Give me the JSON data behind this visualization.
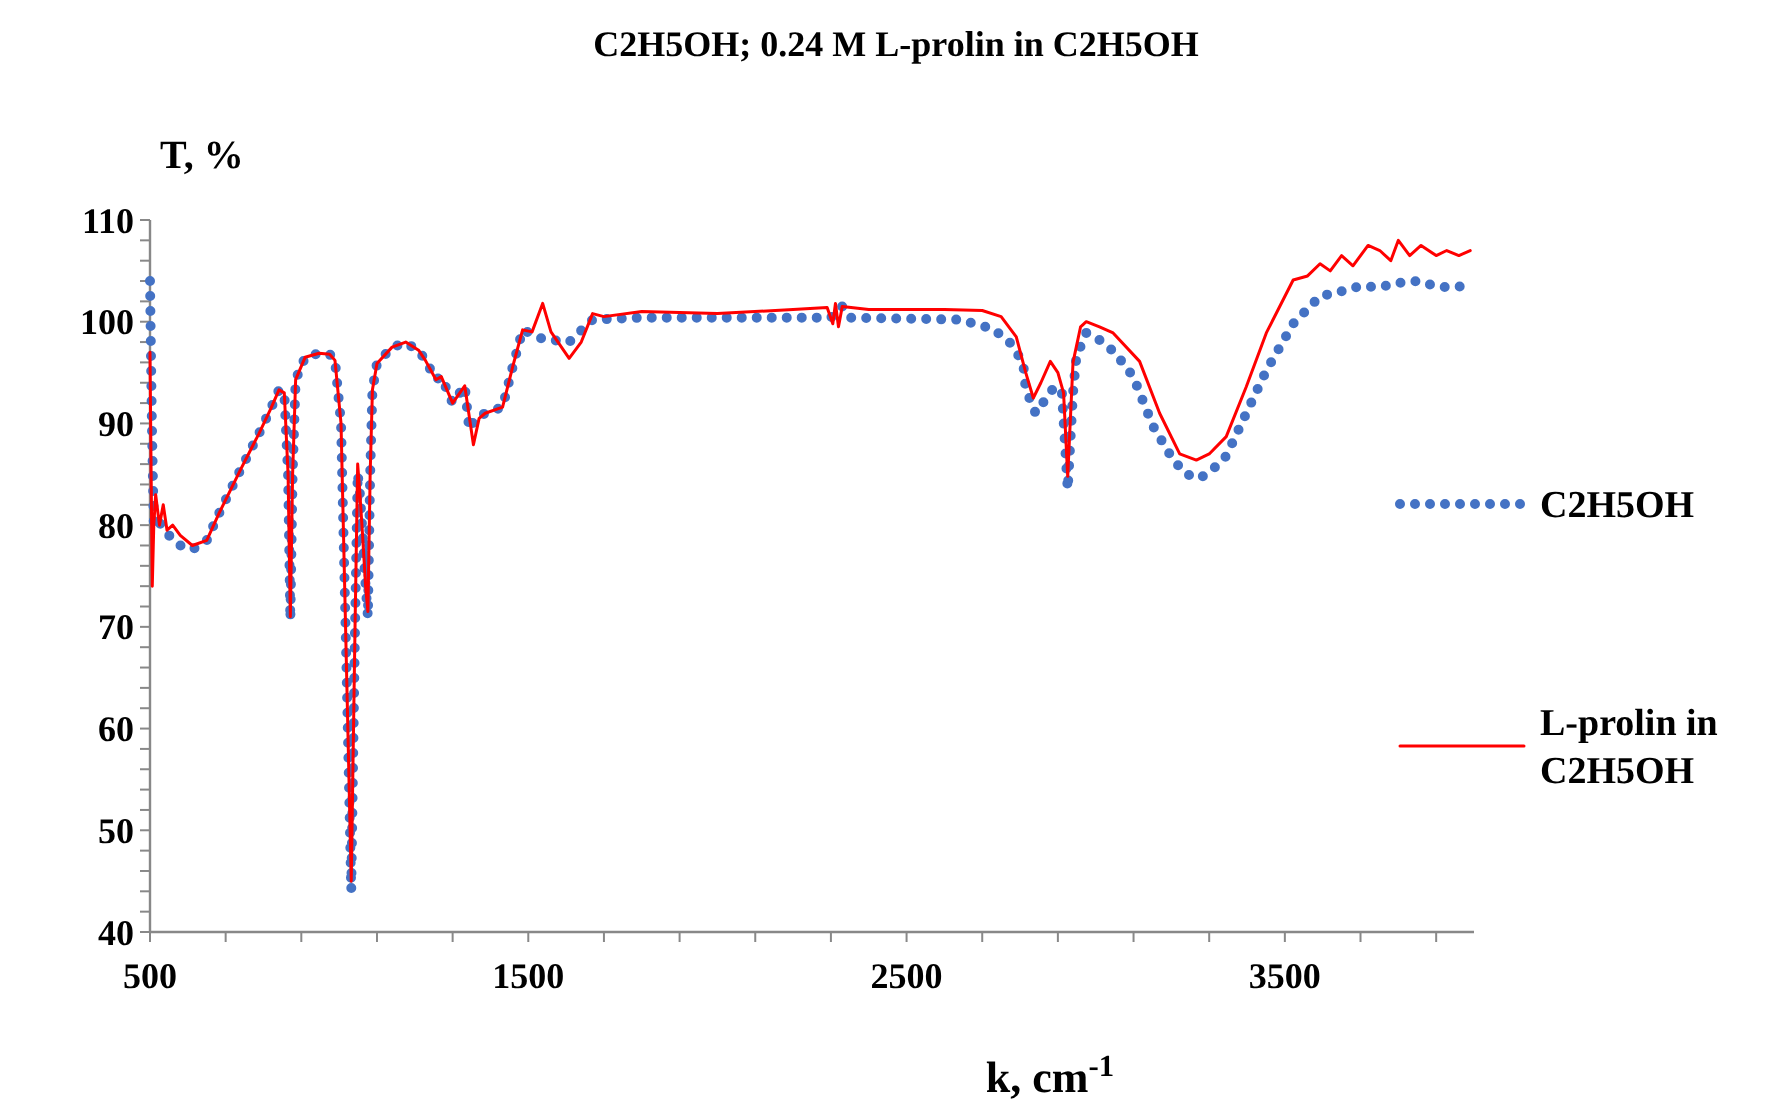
{
  "chart_data": {
    "type": "line",
    "title": "C2H5OH; 0.24 M L-prolin in C2H5OH",
    "xlabel": "k, cm$^{-1}$",
    "ylabel": "T, %",
    "xlim": [
      500,
      4000
    ],
    "ylim": [
      40,
      110
    ],
    "xticks": [
      500,
      {
        "value": 700,
        "label": null
      },
      {
        "value": 900,
        "label": null
      },
      {
        "value": 1100,
        "label": null
      },
      {
        "value": 1300,
        "label": null
      },
      1500,
      {
        "value": 1700,
        "label": null
      },
      {
        "value": 1900,
        "label": null
      },
      {
        "value": 2100,
        "label": null
      },
      {
        "value": 2300,
        "label": null
      },
      2500,
      {
        "value": 2700,
        "label": null
      },
      {
        "value": 2900,
        "label": null
      },
      {
        "value": 3100,
        "label": null
      },
      {
        "value": 3300,
        "label": null
      },
      3500,
      {
        "value": 3700,
        "label": null
      },
      {
        "value": 3900,
        "label": null
      }
    ],
    "yticks": [
      40,
      {
        "value": 42,
        "label": null
      },
      {
        "value": 44,
        "label": null
      },
      {
        "value": 46,
        "label": null
      },
      {
        "value": 48,
        "label": null
      },
      50,
      {
        "value": 52,
        "label": null
      },
      {
        "value": 54,
        "label": null
      },
      {
        "value": 56,
        "label": null
      },
      {
        "value": 58,
        "label": null
      },
      60,
      {
        "value": 62,
        "label": null
      },
      {
        "value": 64,
        "label": null
      },
      {
        "value": 66,
        "label": null
      },
      {
        "value": 68,
        "label": null
      },
      70,
      {
        "value": 72,
        "label": null
      },
      {
        "value": 74,
        "label": null
      },
      {
        "value": 76,
        "label": null
      },
      {
        "value": 78,
        "label": null
      },
      80,
      {
        "value": 82,
        "label": null
      },
      {
        "value": 84,
        "label": null
      },
      {
        "value": 86,
        "label": null
      },
      {
        "value": 88,
        "label": null
      },
      90,
      {
        "value": 92,
        "label": null
      },
      {
        "value": 94,
        "label": null
      },
      {
        "value": 96,
        "label": null
      },
      {
        "value": 98,
        "label": null
      },
      100,
      {
        "value": 102,
        "label": null
      },
      {
        "value": 104,
        "label": null
      },
      {
        "value": 106,
        "label": null
      },
      {
        "value": 108,
        "label": null
      },
      110
    ],
    "grid": false,
    "legend": "right",
    "series": [
      {
        "name": "C2H5OH",
        "color": "#4472c4",
        "line_style": "dotted",
        "x": [
          500,
          505,
          510,
          520,
          550,
          580,
          612,
          650,
          683,
          740,
          788,
          820,
          841,
          855,
          865,
          871,
          877,
          885,
          910,
          947,
          975,
          989,
          1005,
          1020,
          1032,
          1042,
          1049,
          1055,
          1062,
          1070,
          1076,
          1082,
          1088,
          1100,
          1140,
          1176,
          1210,
          1228,
          1256,
          1270,
          1300,
          1332,
          1344,
          1360,
          1386,
          1432,
          1459,
          1485,
          1538,
          1608,
          1670,
          1800,
          2000,
          2300,
          2330,
          2350,
          2640,
          2728,
          2772,
          2808,
          2815,
          2841,
          2887,
          2910,
          2926,
          2940,
          2949,
          2975,
          3010,
          3050,
          3099,
          3152,
          3205,
          3240,
          3275,
          3310,
          3345,
          3398,
          3451,
          3522,
          3593,
          3650,
          3700,
          3751,
          3800,
          3850,
          3900,
          3928,
          3990
        ],
        "values": [
          104,
          90,
          80,
          80.5,
          79,
          78,
          77.6,
          78.5,
          81.2,
          85.5,
          89,
          91.5,
          93.3,
          93,
          85,
          70.7,
          85,
          94.3,
          96.5,
          96.9,
          96.8,
          96.2,
          90,
          65,
          44.1,
          70,
          85.1,
          83,
          79.2,
          74,
          71,
          85,
          93.3,
          95.9,
          97.5,
          97.9,
          97.2,
          96.2,
          94.3,
          94.6,
          92,
          93.7,
          89.4,
          90.5,
          91,
          91.6,
          95.6,
          99.2,
          98.3,
          98,
          100.2,
          100.4,
          100.4,
          100.4,
          101.5,
          100.4,
          100.2,
          99.3,
          98,
          96,
          93.4,
          91,
          93.4,
          93.4,
          83.5,
          93,
          96.6,
          98.9,
          98.2,
          97,
          94.6,
          89.7,
          86.4,
          85,
          84.6,
          85.5,
          86.8,
          91,
          95.2,
          99.8,
          102.5,
          103,
          103.5,
          103.4,
          103.8,
          104,
          103.5,
          103.4,
          103.5
        ]
      },
      {
        "name": "L-prolin in C2H5OH",
        "color": "#ff0000",
        "line_style": "solid",
        "x": [
          500,
          503,
          506,
          510,
          515,
          525,
          535,
          545,
          560,
          580,
          612,
          650,
          683,
          740,
          788,
          820,
          841,
          855,
          865,
          871,
          877,
          885,
          910,
          947,
          975,
          989,
          1005,
          1020,
          1032,
          1042,
          1049,
          1055,
          1062,
          1070,
          1076,
          1082,
          1088,
          1100,
          1140,
          1176,
          1210,
          1228,
          1256,
          1270,
          1300,
          1332,
          1355,
          1370,
          1386,
          1432,
          1459,
          1485,
          1510,
          1538,
          1560,
          1608,
          1640,
          1670,
          1700,
          1800,
          2000,
          2200,
          2290,
          2305,
          2312,
          2320,
          2330,
          2400,
          2600,
          2700,
          2750,
          2790,
          2815,
          2835,
          2855,
          2880,
          2900,
          2915,
          2926,
          2940,
          2960,
          2975,
          3010,
          3046,
          3116,
          3169,
          3222,
          3266,
          3300,
          3345,
          3398,
          3451,
          3522,
          3560,
          3593,
          3620,
          3650,
          3680,
          3720,
          3751,
          3780,
          3800,
          3830,
          3860,
          3900,
          3928,
          3960,
          3990
        ],
        "values": [
          97,
          85,
          74,
          80,
          83,
          80,
          82,
          79.5,
          80,
          79,
          78,
          78.5,
          81.2,
          85.5,
          89,
          91.5,
          93.3,
          93,
          85,
          71,
          85,
          94.3,
          96.5,
          96.9,
          96.8,
          96.2,
          90,
          65,
          45,
          70,
          86,
          83,
          79,
          74,
          71.5,
          85,
          93.3,
          95.9,
          97.5,
          98,
          97.2,
          96.2,
          94.3,
          94.6,
          92,
          93.7,
          87.9,
          90.5,
          91,
          91.6,
          95.6,
          99.2,
          99,
          101.8,
          99,
          96.4,
          98,
          100.8,
          100.5,
          101,
          100.8,
          101.2,
          101.4,
          99.8,
          101.8,
          99.5,
          101.5,
          101.2,
          101.2,
          101.1,
          100.5,
          98.5,
          95,
          92.5,
          94,
          96.1,
          95,
          93,
          84.8,
          96,
          99.5,
          100,
          99.5,
          98.9,
          96.1,
          91,
          87,
          86.4,
          87,
          88.7,
          93.6,
          98.9,
          104.1,
          104.5,
          105.7,
          105,
          106.5,
          105.5,
          107.5,
          107,
          106,
          108,
          106.5,
          107.5,
          106.5,
          107,
          106.5,
          107
        ]
      }
    ]
  }
}
